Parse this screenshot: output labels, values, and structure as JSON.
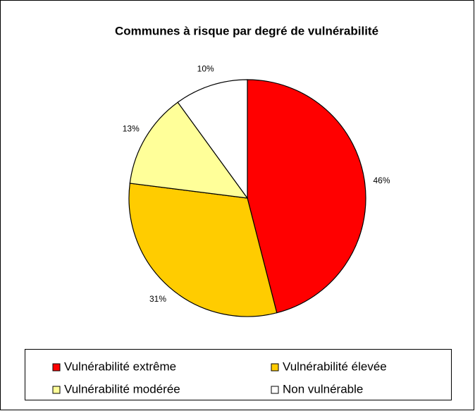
{
  "chart_data": {
    "type": "pie",
    "title": "Communes à risque par degré de vulnérabilité",
    "categories": [
      "Vulnérabilité extrême",
      "Vulnérabilité élevée",
      "Vulnérabilité modérée",
      "Non vulnérable"
    ],
    "values": [
      46,
      31,
      13,
      10
    ],
    "value_labels": [
      "46%",
      "31%",
      "13%",
      "10%"
    ],
    "colors": [
      "#ff0000",
      "#ffcc00",
      "#ffff99",
      "#ffffff"
    ],
    "legend": "bottom"
  }
}
